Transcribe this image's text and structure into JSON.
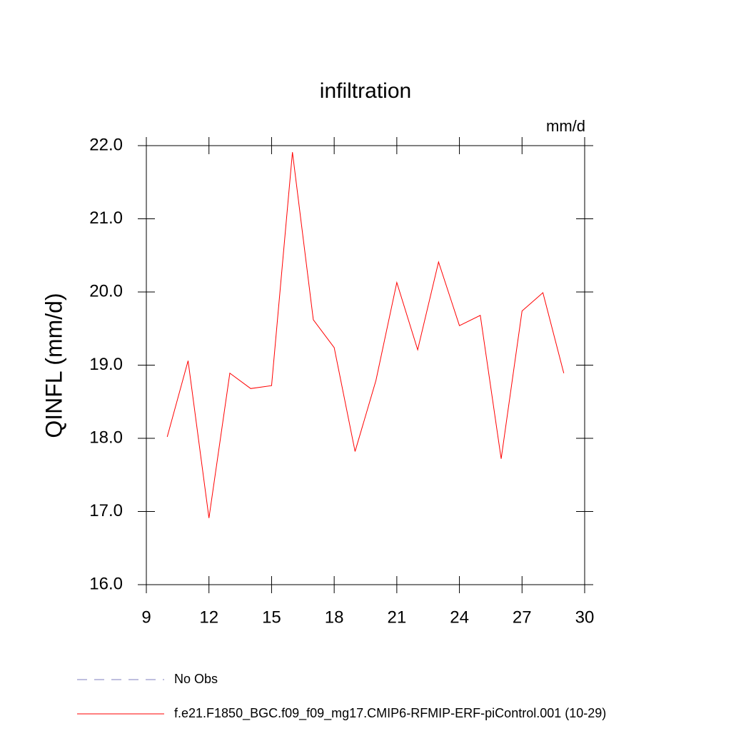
{
  "chart_data": {
    "type": "line",
    "title": "infiltration",
    "units": "mm/d",
    "y_label": "QINFL  (mm/d)",
    "x": [
      10,
      11,
      12,
      13,
      14,
      15,
      16,
      17,
      18,
      19,
      20,
      21,
      22,
      23,
      24,
      25,
      26,
      27,
      28,
      29
    ],
    "series": [
      {
        "name": "No Obs",
        "color": "#7f7fbf",
        "dash": true,
        "values": [
          null,
          null,
          null,
          null,
          null,
          null,
          null,
          null,
          null,
          null,
          null,
          null,
          null,
          null,
          null,
          null,
          null,
          null,
          null,
          null
        ]
      },
      {
        "name": "f.e21.F1850_BGC.f09_f09_mg17.CMIP6-RFMIP-ERF-piControl.001 (10-29)",
        "color": "#ff0000",
        "dash": false,
        "values": [
          18.02,
          19.06,
          16.91,
          18.89,
          18.68,
          18.72,
          21.91,
          19.62,
          19.24,
          17.82,
          18.79,
          20.13,
          19.21,
          20.41,
          19.54,
          19.68,
          17.72,
          19.74,
          19.99,
          18.89
        ]
      }
    ],
    "xlim": [
      9,
      30
    ],
    "xticks": [
      9,
      12,
      15,
      18,
      21,
      24,
      27,
      30
    ],
    "ylim": [
      16,
      22
    ],
    "yticks": [
      {
        "value": 16,
        "label": "16.0"
      },
      {
        "value": 17,
        "label": "17.0"
      },
      {
        "value": 18,
        "label": "18.0"
      },
      {
        "value": 19,
        "label": "19.0"
      },
      {
        "value": 20,
        "label": "20.0"
      },
      {
        "value": 21,
        "label": "21.0"
      },
      {
        "value": 22,
        "label": "22.0"
      }
    ]
  }
}
